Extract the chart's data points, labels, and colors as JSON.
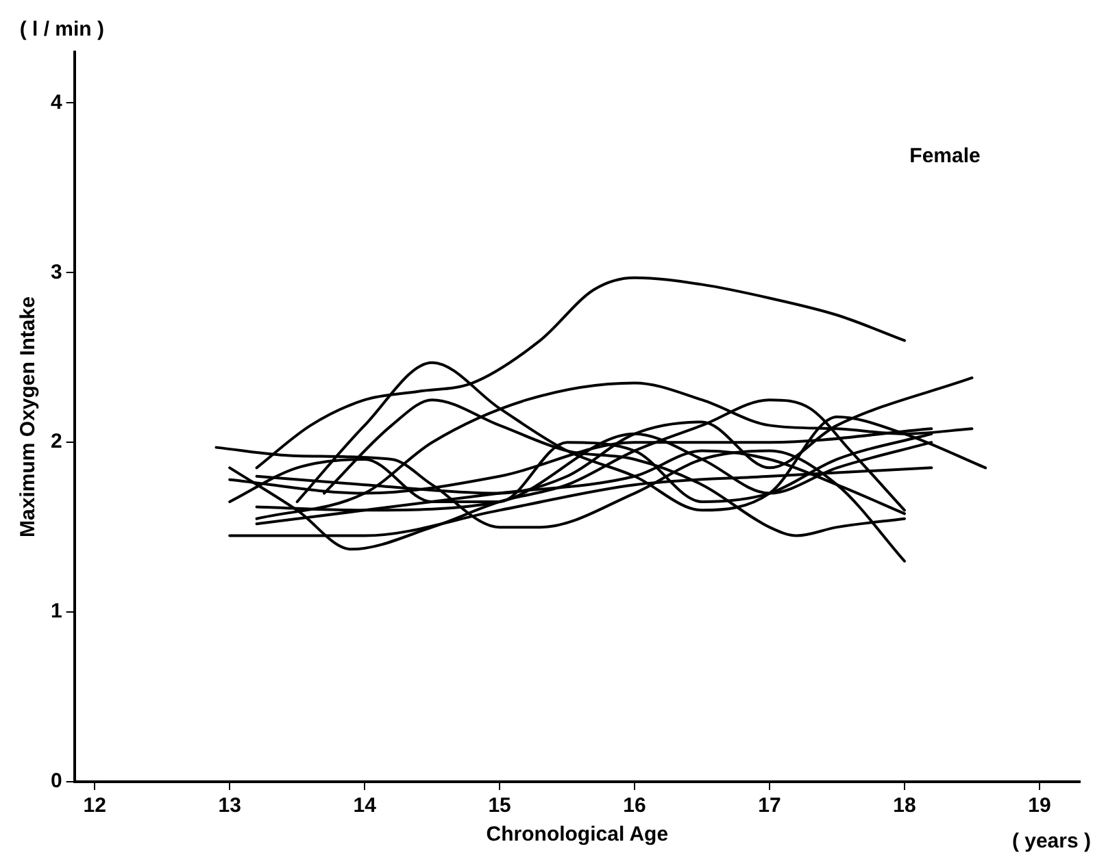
{
  "chart_data": {
    "type": "line",
    "xlabel": "Chronological Age",
    "ylabel": "Maximum Oxygen Intake",
    "annotations": [
      "( l / min )",
      "( years )",
      "Female"
    ],
    "xlim": [
      11.85,
      19.3
    ],
    "ylim": [
      0,
      4.3
    ],
    "xticks": [
      12,
      13,
      14,
      15,
      16,
      17,
      18,
      19
    ],
    "yticks": [
      0,
      1,
      2,
      3,
      4
    ],
    "grid": false,
    "legend": false,
    "marker": "none",
    "line_style": "solid",
    "series": [
      {
        "color": "#000000",
        "x": [
          13.2,
          13.6,
          14,
          14.4,
          14.8,
          15.3,
          15.7,
          16,
          16.5,
          17,
          17.5,
          18
        ],
        "values": [
          1.85,
          2.1,
          2.25,
          2.3,
          2.35,
          2.6,
          2.9,
          2.97,
          2.93,
          2.85,
          2.75,
          2.6
        ]
      },
      {
        "color": "#000000",
        "x": [
          13.5,
          14,
          14.5,
          15,
          15.5,
          16,
          16.5,
          17,
          17.5,
          18,
          18.6
        ],
        "values": [
          1.65,
          2.1,
          2.47,
          2.2,
          1.95,
          1.8,
          1.6,
          1.7,
          2.15,
          2.05,
          1.85
        ]
      },
      {
        "color": "#000000",
        "x": [
          13.7,
          14.2,
          14.5,
          15,
          15.5,
          16,
          16.5,
          17,
          17.2,
          17.5,
          18
        ],
        "values": [
          1.7,
          2.1,
          2.25,
          2.1,
          1.95,
          1.9,
          1.75,
          1.5,
          1.45,
          1.5,
          1.55
        ]
      },
      {
        "color": "#000000",
        "x": [
          13.2,
          14,
          14.5,
          15.2,
          16,
          16.5,
          17,
          17.5,
          18,
          18.5
        ],
        "values": [
          1.55,
          1.7,
          2.0,
          2.25,
          2.35,
          2.25,
          2.1,
          2.08,
          2.05,
          2.08
        ]
      },
      {
        "color": "#000000",
        "x": [
          12.9,
          13.5,
          14.2,
          14.5,
          15,
          15.3,
          16,
          16.5,
          17,
          17.5,
          18
        ],
        "values": [
          1.97,
          1.92,
          1.9,
          1.75,
          1.5,
          1.5,
          1.7,
          1.9,
          1.95,
          1.75,
          1.3
        ]
      },
      {
        "color": "#000000",
        "x": [
          13,
          14,
          15,
          16,
          17,
          18.2
        ],
        "values": [
          1.45,
          1.45,
          1.6,
          1.75,
          1.8,
          1.85
        ]
      },
      {
        "color": "#000000",
        "x": [
          13,
          13.5,
          13.9,
          14.5,
          15,
          15.5,
          16,
          16.5,
          17,
          17.3,
          17.6,
          18
        ],
        "values": [
          1.85,
          1.6,
          1.37,
          1.5,
          1.65,
          1.75,
          1.95,
          2.1,
          2.25,
          2.2,
          1.95,
          1.6
        ]
      },
      {
        "color": "#000000",
        "x": [
          13,
          14,
          15,
          16,
          17,
          18.2
        ],
        "values": [
          1.78,
          1.7,
          1.8,
          2.0,
          2.0,
          2.08
        ]
      },
      {
        "color": "#000000",
        "x": [
          13,
          13.5,
          14,
          14.5,
          15,
          15.5,
          16,
          16.5,
          17,
          17.5,
          18.2
        ],
        "values": [
          1.65,
          1.85,
          1.9,
          1.65,
          1.65,
          2.0,
          1.95,
          1.65,
          1.7,
          1.9,
          2.05
        ]
      },
      {
        "color": "#000000",
        "x": [
          13.2,
          14,
          15,
          16,
          16.5,
          17,
          17.5,
          18
        ],
        "values": [
          1.52,
          1.6,
          1.7,
          1.8,
          1.95,
          1.9,
          1.75,
          1.58
        ]
      },
      {
        "color": "#000000",
        "x": [
          13.2,
          14,
          15,
          16,
          16.5,
          17,
          17.5,
          18.2
        ],
        "values": [
          1.62,
          1.6,
          1.65,
          2.05,
          1.9,
          1.7,
          1.85,
          2.0
        ]
      },
      {
        "color": "#000000",
        "x": [
          13.2,
          14,
          15,
          15.5,
          16,
          16.5,
          17,
          17.5,
          18.5
        ],
        "values": [
          1.8,
          1.75,
          1.7,
          1.8,
          2.05,
          2.12,
          1.85,
          2.1,
          2.38
        ]
      }
    ]
  }
}
